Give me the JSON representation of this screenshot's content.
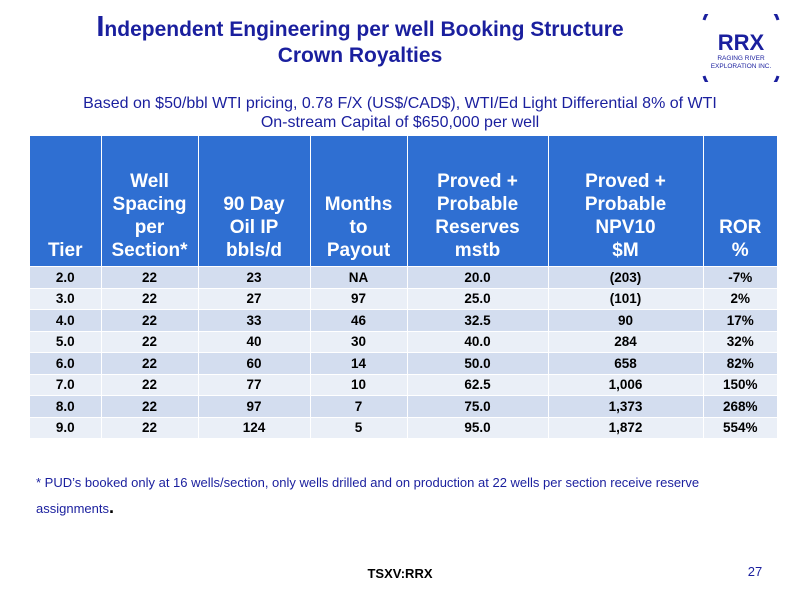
{
  "slide": {
    "title_initial": "I",
    "title_rest": "ndependent Engineering per well Booking Structure",
    "title_line2": "Crown Royalties",
    "subtitle_line1": "Based on  $50/bbl WTI pricing, 0.78 F/X (US$/CAD$), WTI/Ed Light Differential 8% of WTI",
    "subtitle_line2": "On-stream Capital of $650,000 per well",
    "footnote": "* PUD’s booked only at 16 wells/section, only wells drilled and on production at 22 wells per section receive reserve assignments",
    "footnote_end": ".",
    "ticker": "TSXV:RRX",
    "page_number": "27"
  },
  "logo": {
    "name": "RRX",
    "line1": "RAGING RIVER",
    "line2": "EXPLORATION INC.",
    "color": "#1a1f9e"
  },
  "table": {
    "headers": [
      [
        "Tier"
      ],
      [
        "Well",
        "Spacing",
        "per",
        "Section*"
      ],
      [
        "90 Day",
        "Oil IP",
        "bbls/d"
      ],
      [
        "Months",
        "to",
        "Payout"
      ],
      [
        "Proved +",
        "Probable",
        "Reserves",
        "mstb"
      ],
      [
        "Proved +",
        "Probable",
        "NPV10",
        "$M"
      ],
      [
        "ROR",
        "%"
      ]
    ],
    "rows": [
      [
        "2.0",
        "22",
        "23",
        "NA",
        "20.0",
        "(203)",
        "-7%"
      ],
      [
        "3.0",
        "22",
        "27",
        "97",
        "25.0",
        "(101)",
        "2%"
      ],
      [
        "4.0",
        "22",
        "33",
        "46",
        "32.5",
        "90",
        "17%"
      ],
      [
        "5.0",
        "22",
        "40",
        "30",
        "40.0",
        "284",
        "32%"
      ],
      [
        "6.0",
        "22",
        "60",
        "14",
        "50.0",
        "658",
        "82%"
      ],
      [
        "7.0",
        "22",
        "77",
        "10",
        "62.5",
        "1,006",
        "150%"
      ],
      [
        "8.0",
        "22",
        "97",
        "7",
        "75.0",
        "1,373",
        "268%"
      ],
      [
        "9.0",
        "22",
        "124",
        "5",
        "95.0",
        "1,872",
        "554%"
      ]
    ],
    "header_color": "#2f6fd2",
    "row_color_odd": "#d3ddef",
    "row_color_even": "#eaeff7"
  }
}
